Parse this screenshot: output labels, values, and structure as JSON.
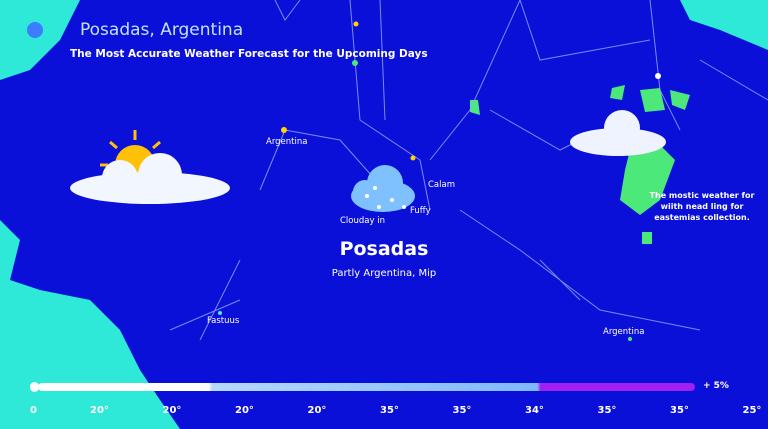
{
  "header": {
    "title": "Posadas, Argentina",
    "subtitle": "The Most Accurate Weather Forecast for the Upcoming Days"
  },
  "main": {
    "city": "Posadas",
    "condition": "Partly Argentina, Mip"
  },
  "labels": {
    "argentina_nw": "Argentina",
    "calam": "Calam",
    "fuffy": "Fuffy",
    "clouday": "Clouday in",
    "fastuus": "Fastuus",
    "argentina_se": "Argentina"
  },
  "note": "The mostic weather for wiith nead ling for eastemias collection.",
  "scale": {
    "start": "0",
    "ticks": [
      "20°",
      "20°",
      "20°",
      "20°",
      "35°",
      "35°",
      "34°",
      "35°",
      "35°",
      "25°"
    ],
    "end_label": "+ 5%"
  },
  "colors": {
    "ocean": "#0a10d8",
    "land": "#2ee8d8",
    "islands": "#4ce87a",
    "bar_purple": "#a020f0"
  },
  "icons": [
    "sun-behind-cloud-icon",
    "rain-cloud-icon",
    "cloud-icon",
    "sun-icon"
  ]
}
